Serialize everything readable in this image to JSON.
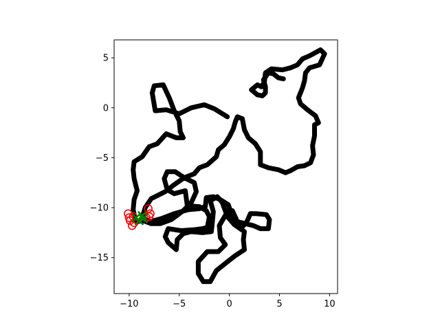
{
  "chart_data": {
    "type": "line",
    "xlim": [
      -11.5,
      10.8
    ],
    "ylim": [
      -18.6,
      6.8
    ],
    "xticks": [
      -10,
      -5,
      0,
      5,
      10
    ],
    "yticks": [
      5,
      0,
      -5,
      -10,
      -15
    ],
    "grid": false,
    "legend": "none",
    "series": [
      {
        "role": "trajectory",
        "color": "#000000",
        "points": [
          [
            -0.2,
            -0.9
          ],
          [
            -1.5,
            -0.1
          ],
          [
            -2.5,
            0.3
          ],
          [
            -3.8,
            0.0
          ],
          [
            -5.0,
            -0.6
          ],
          [
            -6.3,
            -0.2
          ],
          [
            -7.4,
            -0.3
          ],
          [
            -7.7,
            1.5
          ],
          [
            -7.5,
            2.2
          ],
          [
            -6.6,
            2.3
          ],
          [
            -6.0,
            1.0
          ],
          [
            -5.5,
            -0.3
          ],
          [
            -5.0,
            -1.3
          ],
          [
            -4.9,
            -2.4
          ],
          [
            -4.6,
            -3.0
          ],
          [
            -5.3,
            -3.0
          ],
          [
            -6.3,
            -2.6
          ],
          [
            -7.2,
            -3.6
          ],
          [
            -8.0,
            -3.9
          ],
          [
            -8.7,
            -4.9
          ],
          [
            -9.5,
            -5.4
          ],
          [
            -9.6,
            -6.2
          ],
          [
            -9.5,
            -7.1
          ],
          [
            -9.2,
            -8.3
          ],
          [
            -9.5,
            -9.2
          ],
          [
            -9.6,
            -10.2
          ],
          [
            -9.4,
            -11.1
          ],
          [
            -9.2,
            -11.4
          ],
          [
            -8.6,
            -11.3
          ],
          [
            -7.8,
            -11.6
          ],
          [
            -6.9,
            -11.6
          ],
          [
            -5.8,
            -11.2
          ],
          [
            -4.6,
            -10.3
          ],
          [
            -3.8,
            -9.5
          ],
          [
            -3.3,
            -8.4
          ],
          [
            -3.5,
            -7.5
          ],
          [
            -4.5,
            -7.0
          ],
          [
            -5.4,
            -6.4
          ],
          [
            -6.2,
            -6.4
          ],
          [
            -6.5,
            -7.1
          ],
          [
            -6.2,
            -8.2
          ],
          [
            -5.5,
            -8.6
          ],
          [
            -4.4,
            -8.3
          ],
          [
            -4.2,
            -9.8
          ],
          [
            -3.0,
            -9.9
          ],
          [
            -2.3,
            -10.3
          ],
          [
            -2.0,
            -10.9
          ],
          [
            -2.2,
            -12.0
          ],
          [
            -2.7,
            -12.1
          ],
          [
            -3.4,
            -12.2
          ],
          [
            -4.8,
            -12.3
          ],
          [
            -6.1,
            -12.1
          ],
          [
            -6.4,
            -12.9
          ],
          [
            -6.1,
            -13.5
          ],
          [
            -5.3,
            -14.2
          ],
          [
            -5.2,
            -13.2
          ],
          [
            -4.6,
            -12.6
          ],
          [
            -3.8,
            -12.4
          ],
          [
            -2.7,
            -12.5
          ],
          [
            -1.8,
            -12.4
          ],
          [
            -1.7,
            -11.5
          ],
          [
            -1.6,
            -10.4
          ],
          [
            -1.9,
            -9.3
          ],
          [
            -1.2,
            -8.9
          ],
          [
            -0.7,
            -9.5
          ],
          [
            -0.3,
            -10.6
          ],
          [
            -1.0,
            -11.8
          ],
          [
            -0.9,
            -13.0
          ],
          [
            -0.4,
            -13.7
          ],
          [
            -1.1,
            -14.4
          ],
          [
            -2.2,
            -14.4
          ],
          [
            -3.1,
            -15.4
          ],
          [
            -3.1,
            -16.6
          ],
          [
            -2.6,
            -17.4
          ],
          [
            -1.9,
            -17.4
          ],
          [
            -1.3,
            -16.3
          ],
          [
            -0.3,
            -15.5
          ],
          [
            0.6,
            -14.8
          ],
          [
            1.5,
            -14.2
          ],
          [
            1.4,
            -13.2
          ],
          [
            1.5,
            -12.4
          ],
          [
            0.5,
            -11.7
          ],
          [
            -0.1,
            -11.0
          ],
          [
            0.3,
            -10.3
          ],
          [
            0.8,
            -11.4
          ],
          [
            1.6,
            -11.6
          ],
          [
            2.4,
            -11.8
          ],
          [
            3.1,
            -12.1
          ],
          [
            3.9,
            -12.1
          ],
          [
            4.0,
            -11.2
          ],
          [
            3.7,
            -10.7
          ],
          [
            2.7,
            -10.6
          ],
          [
            2.1,
            -10.6
          ],
          [
            1.7,
            -11.5
          ],
          [
            1.3,
            -11.9
          ],
          [
            0.8,
            -11.6
          ],
          [
            0.2,
            -10.6
          ],
          [
            -0.1,
            -9.7
          ],
          [
            -0.9,
            -9.2
          ],
          [
            -1.6,
            -8.9
          ],
          [
            -2.3,
            -9.0
          ],
          [
            -2.4,
            -9.9
          ],
          [
            -3.0,
            -10.1
          ],
          [
            -4.1,
            -10.2
          ],
          [
            -5.5,
            -10.6
          ],
          [
            -6.8,
            -11.1
          ],
          [
            -7.9,
            -11.4
          ],
          [
            -8.7,
            -11.0
          ],
          [
            -8.4,
            -10.0
          ],
          [
            -7.8,
            -9.1
          ],
          [
            -6.4,
            -8.4
          ],
          [
            -5.5,
            -7.7
          ],
          [
            -4.5,
            -7.0
          ],
          [
            -3.5,
            -6.6
          ],
          [
            -3.0,
            -6.0
          ],
          [
            -2.2,
            -5.7
          ],
          [
            -1.3,
            -4.9
          ],
          [
            -1.1,
            -4.2
          ],
          [
            -0.5,
            -3.7
          ],
          [
            0.0,
            -2.9
          ],
          [
            0.4,
            -2.1
          ],
          [
            0.6,
            -1.4
          ],
          [
            0.8,
            -0.9
          ],
          [
            1.3,
            -1.1
          ],
          [
            1.5,
            -2.2
          ],
          [
            1.9,
            -3.0
          ],
          [
            2.6,
            -3.6
          ],
          [
            3.1,
            -4.4
          ],
          [
            3.1,
            -5.7
          ],
          [
            3.9,
            -6.0
          ],
          [
            4.9,
            -6.2
          ],
          [
            5.6,
            -6.5
          ],
          [
            6.1,
            -6.3
          ],
          [
            6.8,
            -5.9
          ],
          [
            7.5,
            -5.8
          ],
          [
            8.1,
            -5.5
          ],
          [
            8.4,
            -4.7
          ],
          [
            8.3,
            -3.8
          ],
          [
            8.5,
            -2.8
          ],
          [
            8.5,
            -1.7
          ],
          [
            8.9,
            -1.5
          ],
          [
            8.6,
            -0.8
          ],
          [
            7.8,
            -0.2
          ],
          [
            7.1,
            0.4
          ],
          [
            6.9,
            1.0
          ],
          [
            7.3,
            2.0
          ],
          [
            7.5,
            2.7
          ],
          [
            7.6,
            3.5
          ],
          [
            8.0,
            4.0
          ],
          [
            9.0,
            4.3
          ],
          [
            9.5,
            5.4
          ],
          [
            9.1,
            5.8
          ],
          [
            8.0,
            5.2
          ],
          [
            7.3,
            4.9
          ],
          [
            6.8,
            4.3
          ],
          [
            6.1,
            4.0
          ],
          [
            5.3,
            3.8
          ],
          [
            4.2,
            3.9
          ],
          [
            3.6,
            3.5
          ],
          [
            3.5,
            2.6
          ],
          [
            3.2,
            2.1
          ],
          [
            2.8,
            2.3
          ],
          [
            2.2,
            1.8
          ],
          [
            2.8,
            1.3
          ],
          [
            3.3,
            1.2
          ],
          [
            3.6,
            1.5
          ],
          [
            3.6,
            2.1
          ],
          [
            3.4,
            2.8
          ],
          [
            3.9,
            3.5
          ],
          [
            4.4,
            3.4
          ],
          [
            4.9,
            3.0
          ],
          [
            5.4,
            2.9
          ]
        ]
      },
      {
        "role": "circle-markers",
        "color": "#ff0000",
        "marker": "circle",
        "points": [
          [
            -10.1,
            -10.6
          ],
          [
            -10.0,
            -11.0
          ],
          [
            -9.9,
            -11.3
          ],
          [
            -9.7,
            -11.8
          ],
          [
            -9.5,
            -11.5
          ],
          [
            -9.6,
            -10.9
          ],
          [
            -8.1,
            -10.1
          ],
          [
            -7.9,
            -10.6
          ],
          [
            -8.0,
            -10.9
          ],
          [
            -8.3,
            -11.0
          ]
        ]
      },
      {
        "role": "x-markers",
        "color": "#008000",
        "marker": "x",
        "points": [
          [
            -9.3,
            -11.0
          ],
          [
            -8.7,
            -10.8
          ],
          [
            -9.0,
            -11.3
          ],
          [
            -8.6,
            -11.1
          ]
        ]
      }
    ]
  }
}
